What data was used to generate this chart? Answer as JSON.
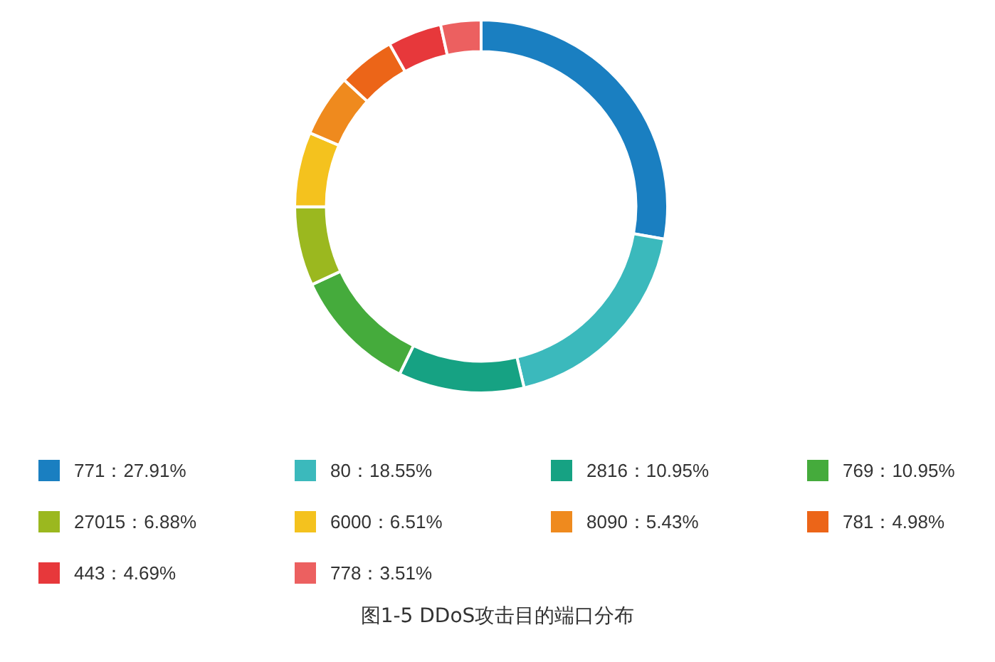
{
  "chart_data": {
    "type": "donut",
    "title": "图1-5 DDoS攻击目的端口分布",
    "legend": "bottom",
    "categories": [
      "771：27.91%",
      "80：18.55%",
      "2816：10.95%",
      "769：10.95%",
      "27015：6.88%",
      "6000：6.51%",
      "8090：5.43%",
      "781：4.98%",
      "443：4.69%",
      "778：3.51%"
    ],
    "values": [
      27.91,
      18.55,
      10.95,
      10.95,
      6.88,
      6.51,
      5.43,
      4.98,
      4.69,
      3.51
    ],
    "colors": [
      "#1a7fc1",
      "#3bb9bc",
      "#16a283",
      "#45ab3c",
      "#9bb81f",
      "#f4c21e",
      "#ef8a1e",
      "#ec6518",
      "#e7383b",
      "#ec6060"
    ]
  }
}
